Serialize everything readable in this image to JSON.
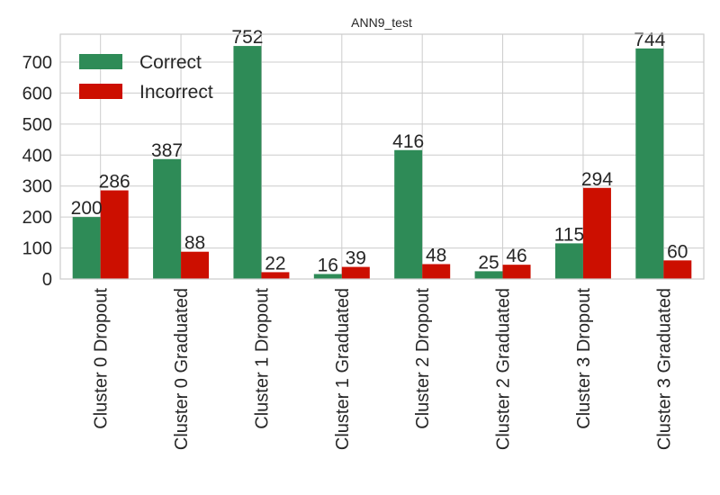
{
  "chart_data": {
    "type": "bar",
    "title": "ANN9_test",
    "xlabel": "",
    "ylabel": "",
    "categories": [
      "Cluster 0 Dropout",
      "Cluster 0 Graduated",
      "Cluster 1 Dropout",
      "Cluster 1 Graduated",
      "Cluster 2 Dropout",
      "Cluster 2 Graduated",
      "Cluster 3 Dropout",
      "Cluster 3 Graduated"
    ],
    "series": [
      {
        "name": "Correct",
        "color": "#2e8b57",
        "values": [
          200,
          387,
          752,
          16,
          416,
          25,
          115,
          744
        ]
      },
      {
        "name": "Incorrect",
        "color": "#cc0f00",
        "values": [
          286,
          88,
          22,
          39,
          48,
          46,
          294,
          60
        ]
      }
    ],
    "ylim": [
      0,
      790
    ],
    "yticks": [
      0,
      100,
      200,
      300,
      400,
      500,
      600,
      700
    ],
    "grid": true,
    "legend_position": "top-left"
  }
}
